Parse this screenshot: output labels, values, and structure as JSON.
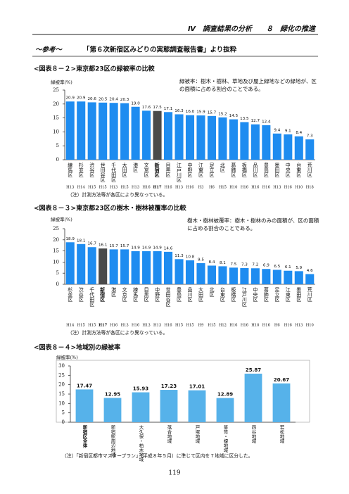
{
  "header": "Ⅳ　調査結果の分析　　８　緑化の推進",
  "reference": {
    "label": "～参考～",
    "title": "「第６次新宿区みどりの実態調査報告書」より抜粋"
  },
  "chart_data": [
    {
      "type": "bar",
      "title": "<図表８－２>東京都23区の緑被率の比較",
      "y_label": "緑被率(%)",
      "note": "緑被率：樹木・樹林、草地及び屋上緑地などの緑地が、区の面積に占める割合のことである。",
      "categories": [
        "練馬区",
        "杉並区",
        "渋谷区",
        "世田谷区",
        "千代田区",
        "大田区",
        "港区",
        "文京区",
        "新宿区",
        "目黒区",
        "江戸川区",
        "中野区",
        "江東区",
        "足立区",
        "北区",
        "葛飾区",
        "板橋区",
        "品川区",
        "豊島区",
        "墨田区",
        "中央区",
        "台東区",
        "荒川区"
      ],
      "survey_years": [
        "H13",
        "H14",
        "H15",
        "H15",
        "H13",
        "H15",
        "H13",
        "H16",
        "H17",
        "H16",
        "H13",
        "H16",
        "H3",
        "H6",
        "H15",
        "H10",
        "H16",
        "H16",
        "H16",
        "H13",
        "H16",
        "H10",
        "H18"
      ],
      "values": [
        20.9,
        20.9,
        20.6,
        20.5,
        20.4,
        20.3,
        19.0,
        17.6,
        17.5,
        17.1,
        16.3,
        16.0,
        15.9,
        15.7,
        15.2,
        14.5,
        13.5,
        12.7,
        12.4,
        9.4,
        9.1,
        8.4,
        7.3
      ],
      "value_labels": [
        "20.9",
        "20.9",
        "20.6",
        "20.5",
        "20.4",
        "20.3",
        "19.0",
        "17.6",
        "17.5",
        "17.1",
        "16.3",
        "16.0",
        "15.9",
        "15.7",
        "15.2",
        "14.5",
        "13.5",
        "12.7",
        "12.4",
        "9.4",
        "9.1",
        "8.4",
        "7.3"
      ],
      "colors": [
        "#1e8cf0",
        "#1e8cf0",
        "#1e8cf0",
        "#1e8cf0",
        "#1e8cf0",
        "#1e8cf0",
        "#1e8cf0",
        "#1e8cf0",
        "#4a4a4a",
        "#1e8cf0",
        "#1e8cf0",
        "#1e8cf0",
        "#1e8cf0",
        "#1e8cf0",
        "#1e8cf0",
        "#1e8cf0",
        "#1e8cf0",
        "#1e8cf0",
        "#1e8cf0",
        "#1e8cf0",
        "#1e8cf0",
        "#1e8cf0",
        "#1e8cf0"
      ],
      "ylim": [
        0,
        25
      ],
      "yticks": [
        0,
        5,
        10,
        15,
        20,
        25
      ],
      "footnote": "（注）計測方法等が各区により異なっている。"
    },
    {
      "type": "bar",
      "title": "<図表８－３>東京都23区の樹木・樹林被覆率の比較",
      "y_label": "緑被率(%)",
      "note": "樹木・樹林被覆率：樹木・樹林のみの面積が、区の面積に占める割合のことである。",
      "categories": [
        "杉並区",
        "渋谷区",
        "千代田区",
        "新宿区",
        "港区",
        "文京区",
        "練馬区",
        "目黒区",
        "中野区",
        "世田谷区",
        "豊島区",
        "品川区",
        "大田区",
        "北区",
        "台東区",
        "板橋区",
        "江戸川区",
        "中央区",
        "葛飾区",
        "足立区",
        "江東区",
        "墨田区",
        "荒川区"
      ],
      "survey_years": [
        "H14",
        "H15",
        "H15",
        "H17",
        "H16",
        "H13",
        "H16",
        "H13",
        "H13",
        "H16",
        "H15",
        "H15",
        "H9",
        "H15",
        "H12",
        "H16",
        "H16",
        "H10",
        "H16",
        "H6",
        "H16",
        "H13",
        "H10"
      ],
      "values": [
        18.9,
        18.1,
        16.7,
        16.1,
        15.7,
        15.7,
        14.9,
        14.9,
        14.9,
        14.6,
        11.3,
        10.8,
        9.5,
        8.4,
        8.1,
        7.5,
        7.3,
        7.2,
        6.9,
        6.5,
        6.1,
        5.9,
        4.6
      ],
      "value_labels": [
        "18.9",
        "18.1",
        "16.7",
        "16.1",
        "15.7",
        "15.7",
        "14.9",
        "14.9",
        "14.9",
        "14.6",
        "11.3",
        "10.8",
        "9.5",
        "8.4",
        "8.1",
        "7.5",
        "7.3",
        "7.2",
        "6.9",
        "6.5",
        "6.1",
        "5.9",
        "4.6"
      ],
      "colors": [
        "#1e8cf0",
        "#1e8cf0",
        "#1e8cf0",
        "#4a4a4a",
        "#1e8cf0",
        "#1e8cf0",
        "#1e8cf0",
        "#1e8cf0",
        "#1e8cf0",
        "#1e8cf0",
        "#1e8cf0",
        "#1e8cf0",
        "#1e8cf0",
        "#1e8cf0",
        "#1e8cf0",
        "#1e8cf0",
        "#1e8cf0",
        "#1e8cf0",
        "#1e8cf0",
        "#1e8cf0",
        "#1e8cf0",
        "#1e8cf0",
        "#1e8cf0"
      ],
      "ylim": [
        0,
        25
      ],
      "yticks": [
        0,
        5,
        10,
        15,
        20,
        25
      ],
      "footnote": "（注）計測方法等が各区により異なっている。"
    },
    {
      "type": "bar",
      "title": "<図表８－４>地域別の緑被率",
      "y_label": "緑被率(%)",
      "categories": [
        "新宿区全体",
        "新宿駅周辺地域",
        "大久保・柏木地域",
        "落合地域",
        "戸塚地域",
        "箪笥・榎地域",
        "四谷地域",
        "若松地域"
      ],
      "values": [
        17.47,
        12.95,
        15.93,
        17.23,
        17.01,
        12.89,
        25.87,
        20.67
      ],
      "color": "#56b2ea",
      "ylim": [
        0,
        30
      ],
      "yticks": [
        0,
        5,
        10,
        15,
        20,
        25,
        30
      ],
      "footnote": "（注）「新宿区都市マスタープラン」（平成８年５月）に準じて区内を７地域に区分した。"
    }
  ],
  "page_number": "119"
}
